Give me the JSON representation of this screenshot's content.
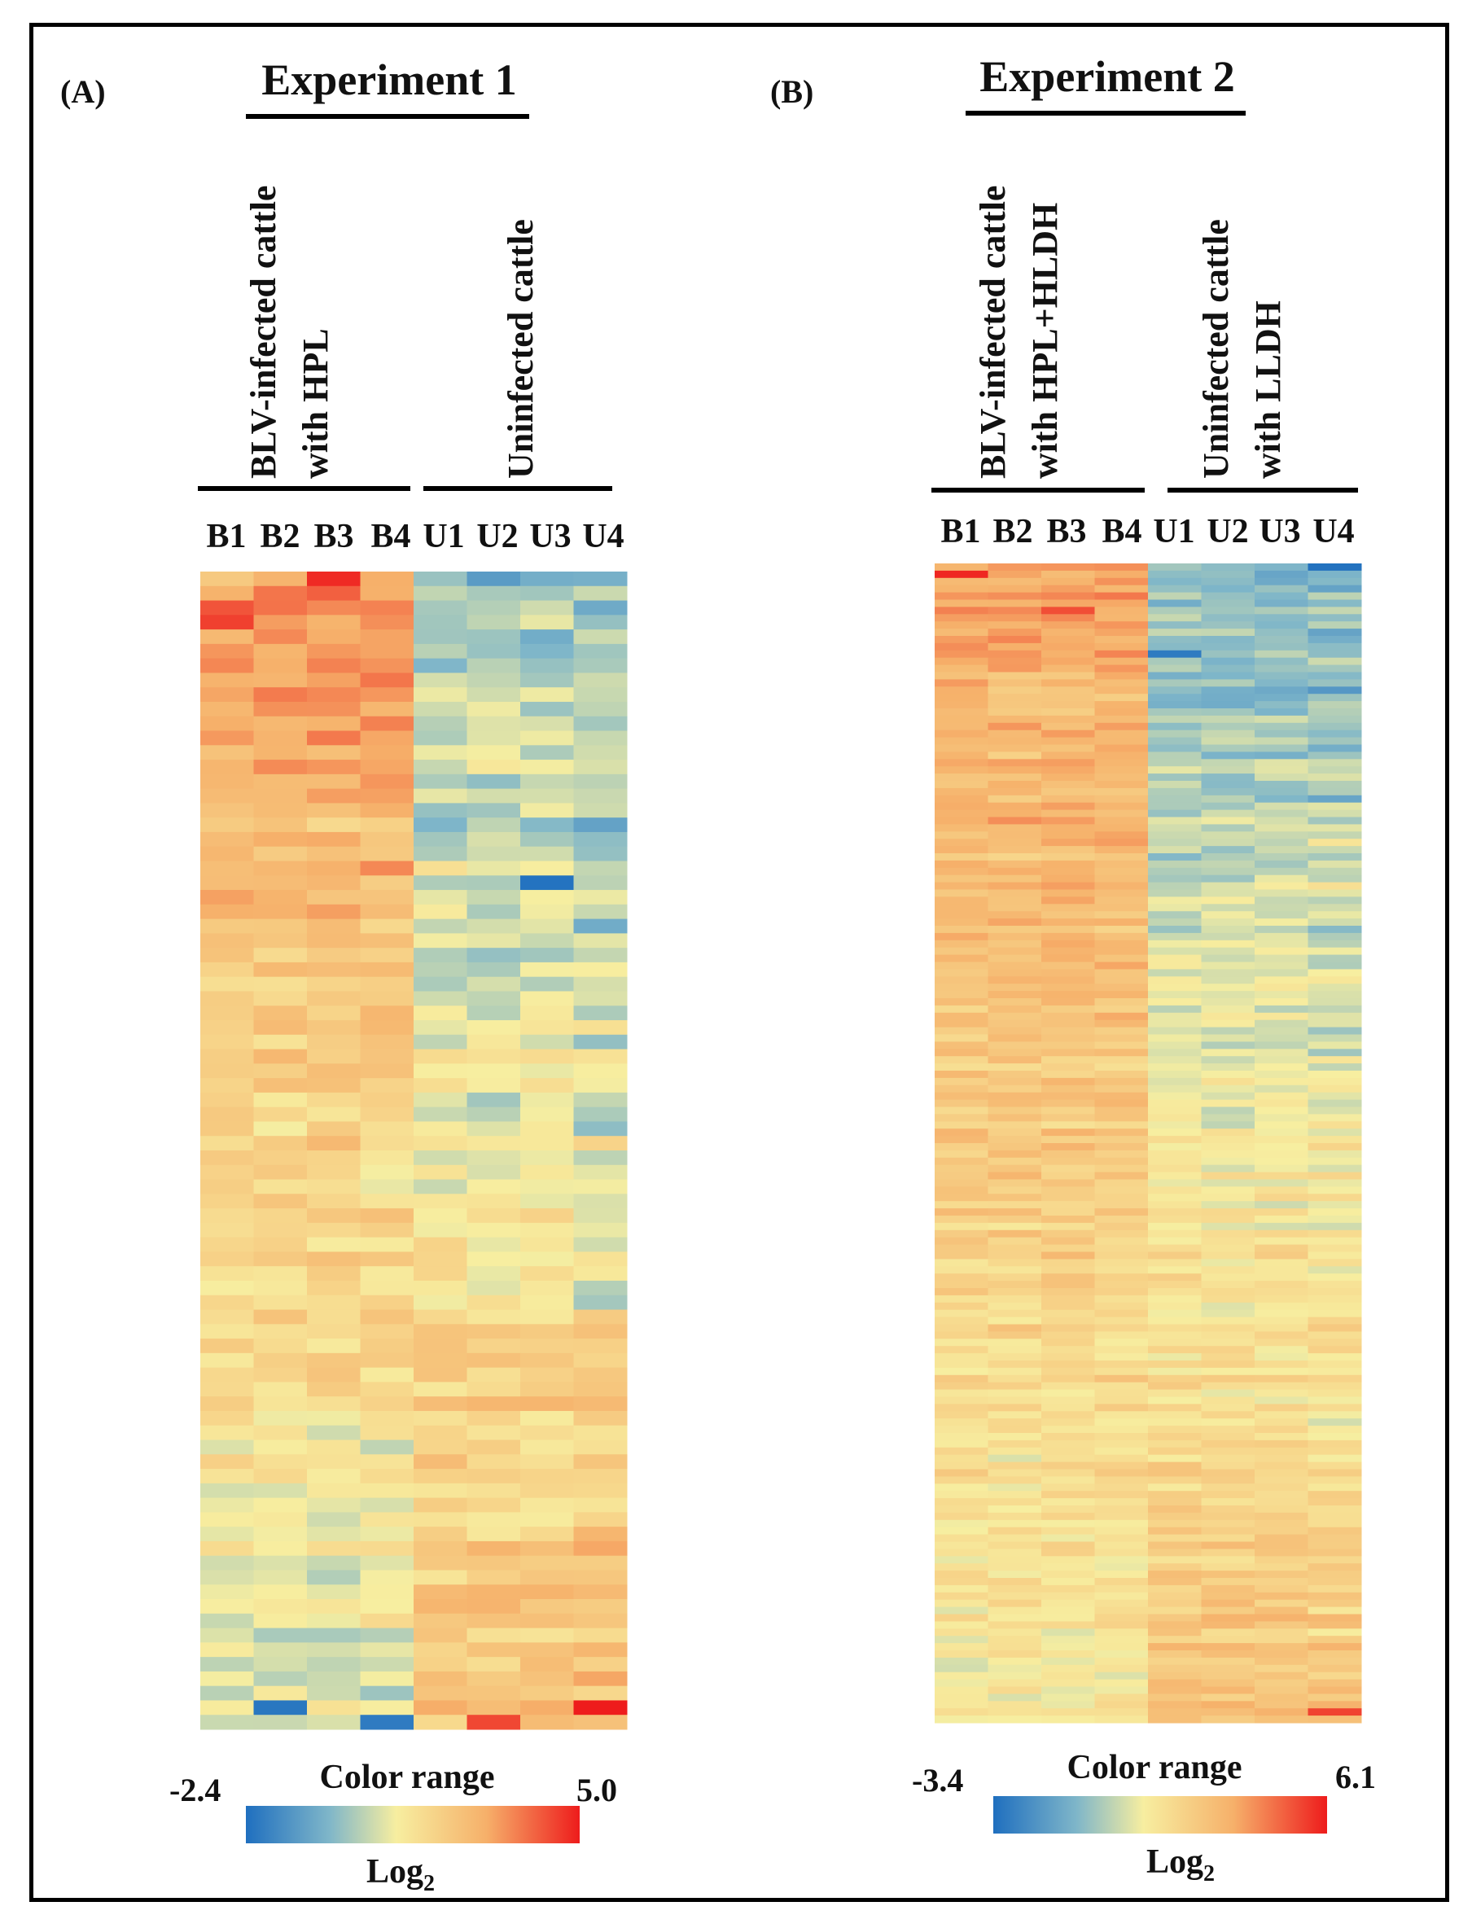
{
  "chart_data": [
    {
      "type": "heatmap",
      "panel_label": "(A)",
      "title": "Experiment 1",
      "groups": [
        {
          "label_line1": "BLV-infected cattle",
          "label_line2": "with HPL"
        },
        {
          "label_line1": "Uninfected cattle",
          "label_line2": ""
        }
      ],
      "columns": [
        "B1",
        "B2",
        "B3",
        "B4",
        "U1",
        "U2",
        "U3",
        "U4"
      ],
      "value_range": [
        -2.4,
        5.0
      ],
      "legend": {
        "title": "Color range",
        "min_label": "-2.4",
        "max_label": "5.0",
        "unit_label": "Log",
        "unit_sub": "2"
      },
      "row_count": 80,
      "rows_pattern": {
        "group1_mean_top": 3.2,
        "group1_mean_bottom": 0.6,
        "group2_mean_top": -0.3,
        "group2_mean_bottom": 2.4
      },
      "highlights": [
        {
          "row": 0,
          "col": 2,
          "value": 4.8
        },
        {
          "row": 3,
          "col": 0,
          "value": 4.5
        },
        {
          "row": 21,
          "col": 6,
          "value": -2.3
        },
        {
          "row": 78,
          "col": 1,
          "value": -2.2
        },
        {
          "row": 79,
          "col": 3,
          "value": -2.1
        },
        {
          "row": 78,
          "col": 7,
          "value": 5.0
        },
        {
          "row": 79,
          "col": 5,
          "value": 4.4
        }
      ]
    },
    {
      "type": "heatmap",
      "panel_label": "(B)",
      "title": "Experiment 2",
      "groups": [
        {
          "label_line1": "BLV-infected cattle",
          "label_line2": "with HPL+HLDH"
        },
        {
          "label_line1": "Uninfected cattle",
          "label_line2": "with LLDH"
        }
      ],
      "columns": [
        "B1",
        "B2",
        "B3",
        "B4",
        "U1",
        "U2",
        "U3",
        "U4"
      ],
      "value_range": [
        -3.4,
        6.1
      ],
      "legend": {
        "title": "Color range",
        "min_label": "-3.4",
        "max_label": "6.1",
        "unit_label": "Log",
        "unit_sub": "2"
      },
      "row_count": 160,
      "rows_pattern": {
        "group1_mean_top": 3.6,
        "group1_mean_bottom": 0.9,
        "group2_mean_top": -0.8,
        "group2_mean_bottom": 2.6
      },
      "highlights": [
        {
          "row": 1,
          "col": 0,
          "value": 5.9
        },
        {
          "row": 6,
          "col": 2,
          "value": 5.2
        },
        {
          "row": 0,
          "col": 7,
          "value": -3.3
        },
        {
          "row": 12,
          "col": 4,
          "value": -3.0
        },
        {
          "row": 158,
          "col": 7,
          "value": 5.4
        }
      ]
    }
  ],
  "colors": {
    "low": "#1f6fbf",
    "mid_low": "#7fb6c9",
    "mid": "#f7eea0",
    "mid_high": "#f6b06a",
    "high": "#ee1c1c"
  }
}
